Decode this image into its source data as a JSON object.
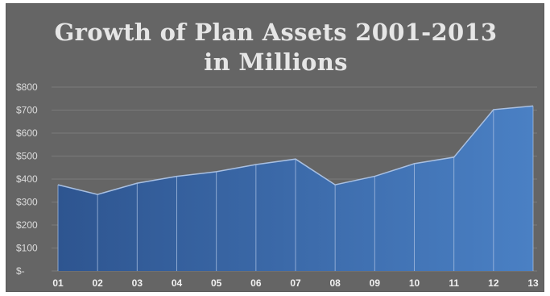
{
  "chart_data": {
    "type": "area",
    "title": "Growth of Plan Assets 2001-2013",
    "subtitle": "in Millions",
    "xlabel": "",
    "ylabel": "",
    "categories": [
      "01",
      "02",
      "03",
      "04",
      "05",
      "06",
      "07",
      "08",
      "09",
      "10",
      "11",
      "12",
      "13"
    ],
    "values": [
      375,
      333,
      382,
      412,
      432,
      463,
      487,
      375,
      412,
      467,
      495,
      702,
      718
    ],
    "ylim": [
      0,
      800
    ],
    "yticks": [
      {
        "value": 0,
        "label": "$-"
      },
      {
        "value": 100,
        "label": "$100"
      },
      {
        "value": 200,
        "label": "$200"
      },
      {
        "value": 300,
        "label": "$300"
      },
      {
        "value": 400,
        "label": "$400"
      },
      {
        "value": 500,
        "label": "$500"
      },
      {
        "value": 600,
        "label": "$600"
      },
      {
        "value": 700,
        "label": "$700"
      },
      {
        "value": 800,
        "label": "$800"
      }
    ],
    "grid": true,
    "legend": "none",
    "colors": {
      "background": "#656565",
      "area_dark": "#2e5590",
      "area_light": "#4a80c4",
      "line": "#a9c0e2",
      "grid": "#7a7a7a",
      "title": "#e6e6e6"
    }
  }
}
